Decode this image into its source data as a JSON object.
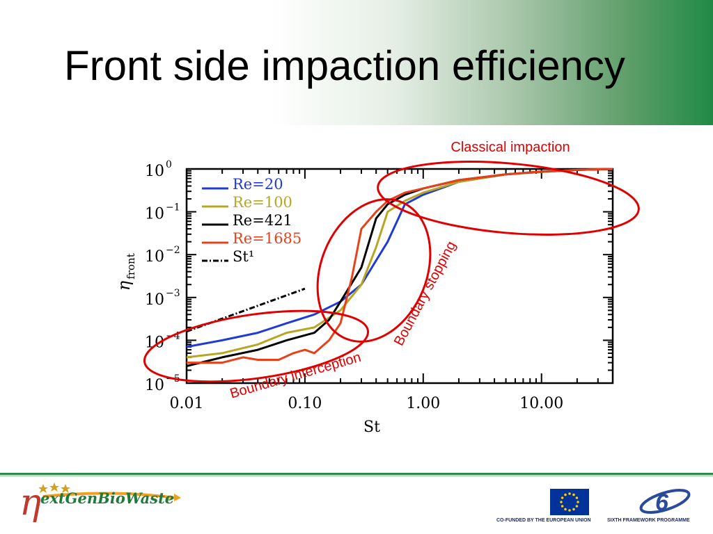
{
  "slide": {
    "title": "Front side impaction efficiency"
  },
  "chart_data": {
    "type": "line",
    "xlabel": "St",
    "ylabel_main": "η",
    "ylabel_sub": "front",
    "xscale": "log",
    "yscale": "log",
    "xlim": [
      0.01,
      40
    ],
    "ylim": [
      1e-05,
      1
    ],
    "x_tick_labels": [
      "0.01",
      "0.10",
      "1.00",
      "10.00"
    ],
    "x_tick_values": [
      0.01,
      0.1,
      1,
      10
    ],
    "y_tick_values": [
      1,
      0.1,
      0.01,
      0.001,
      0.0001,
      1e-05
    ],
    "y_tick_base": "10",
    "y_tick_exponents": [
      "0",
      "−1",
      "−2",
      "−3",
      "−4",
      "−5"
    ],
    "legend_position": "top-left",
    "series": [
      {
        "name": "Re=20",
        "color": "#1f3ad6",
        "dash": "solid",
        "x": [
          0.01,
          0.02,
          0.04,
          0.07,
          0.12,
          0.2,
          0.3,
          0.5,
          0.7,
          1.0,
          2.0,
          5.0,
          10.0,
          20.0,
          40.0
        ],
        "y": [
          7e-05,
          0.0001,
          0.00015,
          0.00025,
          0.0004,
          0.0008,
          0.002,
          0.02,
          0.15,
          0.25,
          0.5,
          0.75,
          0.85,
          0.95,
          1.0
        ]
      },
      {
        "name": "Re=100",
        "color": "#b8a623",
        "dash": "solid",
        "x": [
          0.01,
          0.02,
          0.04,
          0.07,
          0.12,
          0.2,
          0.3,
          0.4,
          0.5,
          0.7,
          1.0,
          2.0,
          5.0,
          10.0,
          20.0,
          40.0
        ],
        "y": [
          4e-05,
          5e-05,
          8e-05,
          0.00015,
          0.0002,
          0.0005,
          0.002,
          0.015,
          0.1,
          0.18,
          0.28,
          0.5,
          0.75,
          0.85,
          0.95,
          1.0
        ]
      },
      {
        "name": "Re=421",
        "color": "#000000",
        "dash": "solid",
        "x": [
          0.01,
          0.02,
          0.04,
          0.07,
          0.12,
          0.16,
          0.2,
          0.3,
          0.4,
          0.5,
          0.7,
          1.0,
          2.0,
          5.0,
          10.0,
          20.0,
          40.0
        ],
        "y": [
          2.5e-05,
          4e-05,
          6e-05,
          0.0001,
          0.00015,
          0.0003,
          0.0008,
          0.005,
          0.07,
          0.15,
          0.25,
          0.35,
          0.55,
          0.75,
          0.87,
          0.95,
          1.0
        ]
      },
      {
        "name": "Re=1685",
        "color": "#e8411a",
        "dash": "solid",
        "x": [
          0.01,
          0.02,
          0.03,
          0.04,
          0.06,
          0.08,
          0.1,
          0.12,
          0.16,
          0.2,
          0.25,
          0.3,
          0.4,
          0.5,
          0.7,
          1.0,
          2.0,
          5.0,
          10.0,
          20.0,
          40.0
        ],
        "y": [
          3e-05,
          3e-05,
          4e-05,
          3.5e-05,
          3.5e-05,
          5e-05,
          6e-05,
          5e-05,
          0.0001,
          0.00025,
          0.003,
          0.04,
          0.1,
          0.18,
          0.28,
          0.35,
          0.55,
          0.75,
          0.87,
          0.95,
          1.0
        ]
      },
      {
        "name": "St¹",
        "color": "#000000",
        "dash": "dashdot",
        "x": [
          0.01,
          0.1
        ],
        "y": [
          0.00016,
          0.0016
        ]
      }
    ],
    "annotations": [
      {
        "text": "Classical impaction",
        "color": "#e00000"
      },
      {
        "text": "Boundary stopping",
        "color": "#e00000"
      },
      {
        "text": "Boundary interception",
        "color": "#e00000"
      }
    ]
  },
  "footer": {
    "logo_text": "extGenBioWaste",
    "eu_caption": "CO-FUNDED BY THE EUROPEAN UNION",
    "fp6_caption": "SIXTH FRAMEWORK PROGRAMME"
  }
}
